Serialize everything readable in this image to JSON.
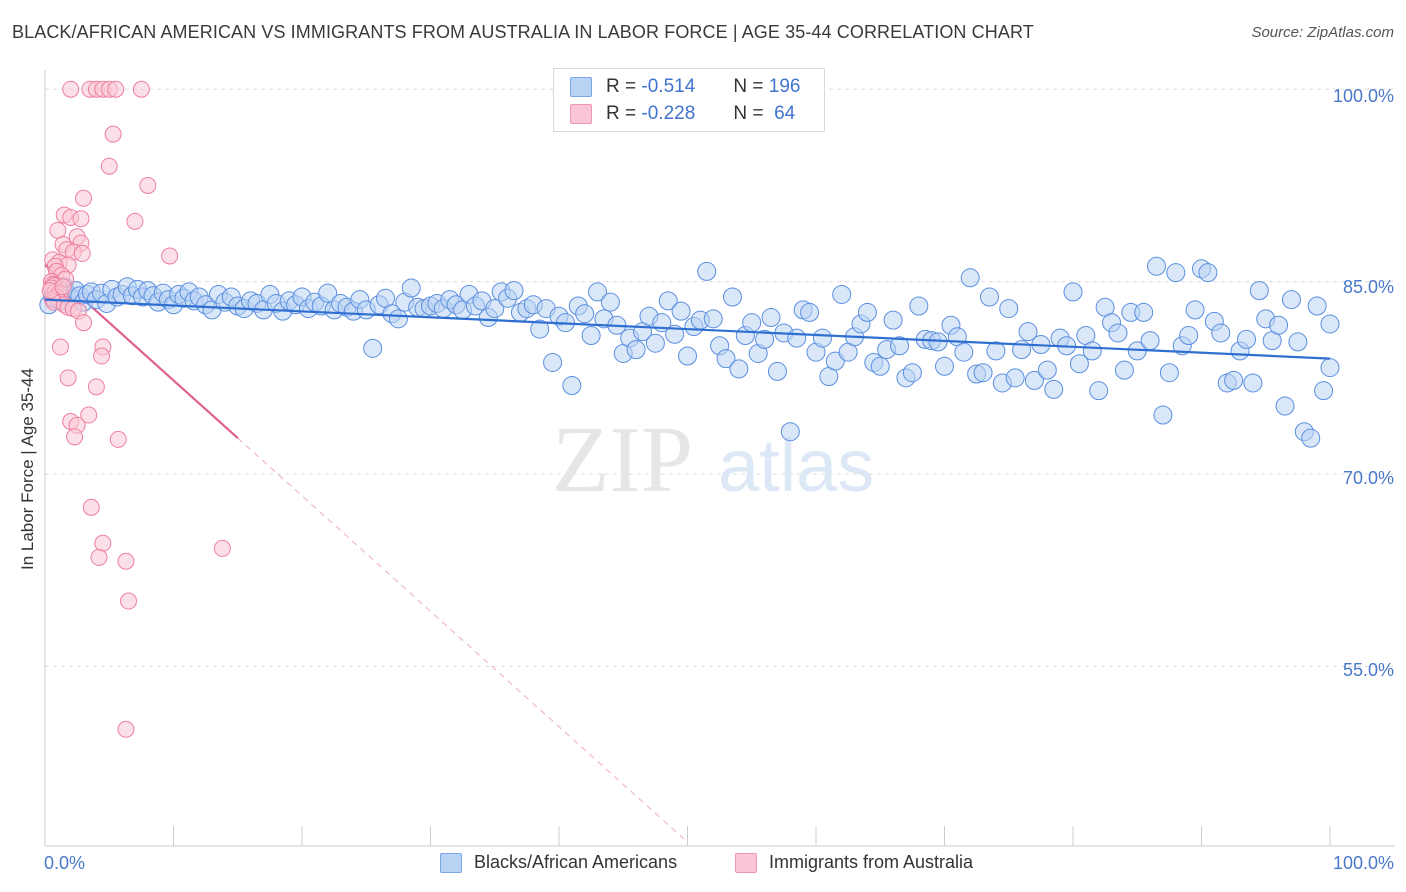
{
  "title": "BLACK/AFRICAN AMERICAN VS IMMIGRANTS FROM AUSTRALIA IN LABOR FORCE | AGE 35-44 CORRELATION CHART",
  "source": "Source: ZipAtlas.com",
  "watermark": {
    "zip": "ZIP",
    "atlas": "atlas"
  },
  "stats": {
    "blue": {
      "r_label": "R =",
      "r": "-0.514",
      "n_label": "N =",
      "n": "196"
    },
    "pink": {
      "r_label": "R =",
      "r": "-0.228",
      "n_label": "N =",
      "n": "64"
    }
  },
  "legend": {
    "blue": "Blacks/African Americans",
    "pink": "Immigrants from Australia"
  },
  "colors": {
    "blue": "#5b8fe0",
    "blue_fill": "#b9d3f4",
    "blue_line": "#2f6fd0",
    "pink": "#ee7fa0",
    "pink_fill": "#fac6d5",
    "pink_line": "#e0608c",
    "tick": "#4a78c8"
  },
  "chart_data": {
    "type": "scatter",
    "title": "BLACK/AFRICAN AMERICAN VS IMMIGRANTS FROM AUSTRALIA IN LABOR FORCE | AGE 35-44 CORRELATION CHART",
    "xlabel": "",
    "ylabel": "In Labor Force | Age 35-44",
    "xlim": [
      0,
      100
    ],
    "ylim": [
      41,
      101.5
    ],
    "x_tick_labels": [
      "0.0%",
      "100.0%"
    ],
    "y_ticks": [
      100,
      85,
      70,
      55
    ],
    "y_tick_labels": [
      "100.0%",
      "85.0%",
      "70.0%",
      "55.0%"
    ],
    "grid": true,
    "series": [
      {
        "name": "Blacks/African Americans",
        "r": -0.514,
        "n": 196,
        "trend": {
          "x0": 0,
          "y0": 83.6,
          "x1": 100,
          "y1": 79.0
        },
        "points": [
          [
            0.3,
            83.2
          ],
          [
            0.6,
            83.8
          ],
          [
            0.9,
            84.1
          ],
          [
            1.2,
            83.5
          ],
          [
            1.5,
            84.6
          ],
          [
            1.8,
            84.0
          ],
          [
            2.1,
            83.7
          ],
          [
            2.4,
            84.3
          ],
          [
            2.7,
            83.9
          ],
          [
            3.0,
            83.4
          ],
          [
            3.3,
            84.0
          ],
          [
            3.6,
            84.2
          ],
          [
            4.0,
            83.6
          ],
          [
            4.4,
            84.1
          ],
          [
            4.8,
            83.3
          ],
          [
            5.2,
            84.4
          ],
          [
            5.6,
            83.8
          ],
          [
            6.0,
            84.0
          ],
          [
            6.4,
            84.6
          ],
          [
            6.8,
            83.9
          ],
          [
            7.2,
            84.4
          ],
          [
            7.6,
            83.8
          ],
          [
            8.0,
            84.3
          ],
          [
            8.4,
            83.9
          ],
          [
            8.8,
            83.4
          ],
          [
            9.2,
            84.1
          ],
          [
            9.6,
            83.6
          ],
          [
            10.0,
            83.2
          ],
          [
            10.4,
            84.0
          ],
          [
            10.8,
            83.7
          ],
          [
            11.2,
            84.2
          ],
          [
            11.6,
            83.5
          ],
          [
            12.0,
            83.8
          ],
          [
            12.5,
            83.2
          ],
          [
            13.0,
            82.8
          ],
          [
            13.5,
            84.0
          ],
          [
            14.0,
            83.4
          ],
          [
            14.5,
            83.8
          ],
          [
            15.0,
            83.1
          ],
          [
            15.5,
            82.9
          ],
          [
            16.0,
            83.5
          ],
          [
            16.5,
            83.3
          ],
          [
            17.0,
            82.8
          ],
          [
            17.5,
            84.0
          ],
          [
            18.0,
            83.3
          ],
          [
            18.5,
            82.7
          ],
          [
            19.0,
            83.5
          ],
          [
            19.5,
            83.2
          ],
          [
            20.0,
            83.8
          ],
          [
            20.5,
            82.9
          ],
          [
            21.0,
            83.4
          ],
          [
            21.5,
            83.1
          ],
          [
            22.0,
            84.1
          ],
          [
            22.5,
            82.8
          ],
          [
            23.0,
            83.3
          ],
          [
            23.5,
            83.0
          ],
          [
            24.0,
            82.7
          ],
          [
            24.5,
            83.6
          ],
          [
            25.0,
            82.8
          ],
          [
            25.5,
            79.8
          ],
          [
            26.0,
            83.2
          ],
          [
            26.5,
            83.7
          ],
          [
            27.0,
            82.5
          ],
          [
            27.5,
            82.1
          ],
          [
            28.0,
            83.4
          ],
          [
            28.5,
            84.5
          ],
          [
            29.0,
            83.0
          ],
          [
            29.5,
            82.9
          ],
          [
            30.0,
            83.1
          ],
          [
            30.5,
            83.3
          ],
          [
            31.0,
            82.9
          ],
          [
            31.5,
            83.6
          ],
          [
            32.0,
            83.2
          ],
          [
            32.5,
            82.8
          ],
          [
            33.0,
            84.0
          ],
          [
            33.5,
            83.1
          ],
          [
            34.0,
            83.5
          ],
          [
            34.5,
            82.2
          ],
          [
            35.0,
            82.9
          ],
          [
            35.5,
            84.2
          ],
          [
            36.0,
            83.7
          ],
          [
            36.5,
            84.3
          ],
          [
            37.0,
            82.6
          ],
          [
            37.5,
            82.9
          ],
          [
            38.0,
            83.2
          ],
          [
            38.5,
            81.3
          ],
          [
            39.0,
            82.9
          ],
          [
            39.5,
            78.7
          ],
          [
            40.0,
            82.3
          ],
          [
            40.5,
            81.8
          ],
          [
            41.0,
            76.9
          ],
          [
            41.5,
            83.1
          ],
          [
            42.0,
            82.5
          ],
          [
            42.5,
            80.8
          ],
          [
            43.0,
            84.2
          ],
          [
            43.5,
            82.1
          ],
          [
            44.0,
            83.4
          ],
          [
            44.5,
            81.6
          ],
          [
            45.0,
            79.4
          ],
          [
            45.5,
            80.6
          ],
          [
            46.0,
            79.7
          ],
          [
            46.5,
            81.1
          ],
          [
            47.0,
            82.3
          ],
          [
            47.5,
            80.2
          ],
          [
            48.0,
            81.8
          ],
          [
            48.5,
            83.5
          ],
          [
            49.0,
            80.9
          ],
          [
            49.5,
            82.7
          ],
          [
            50.0,
            79.2
          ],
          [
            50.5,
            81.5
          ],
          [
            51.0,
            82.0
          ],
          [
            51.5,
            85.8
          ],
          [
            52.0,
            82.1
          ],
          [
            52.5,
            80.0
          ],
          [
            53.0,
            79.0
          ],
          [
            53.5,
            83.8
          ],
          [
            54.0,
            78.2
          ],
          [
            54.5,
            80.8
          ],
          [
            55.0,
            81.8
          ],
          [
            55.5,
            79.4
          ],
          [
            56.0,
            80.5
          ],
          [
            56.5,
            82.2
          ],
          [
            57.0,
            78.0
          ],
          [
            57.5,
            81.0
          ],
          [
            58.0,
            73.3
          ],
          [
            58.5,
            80.6
          ],
          [
            59.0,
            82.8
          ],
          [
            59.5,
            82.6
          ],
          [
            60.0,
            79.5
          ],
          [
            60.5,
            80.6
          ],
          [
            61.0,
            77.6
          ],
          [
            61.5,
            78.8
          ],
          [
            62.0,
            84.0
          ],
          [
            62.5,
            79.5
          ],
          [
            63.0,
            80.7
          ],
          [
            63.5,
            81.7
          ],
          [
            64.0,
            82.6
          ],
          [
            64.5,
            78.7
          ],
          [
            65.0,
            78.4
          ],
          [
            65.5,
            79.7
          ],
          [
            66.0,
            82.0
          ],
          [
            66.5,
            80.0
          ],
          [
            67.0,
            77.5
          ],
          [
            67.5,
            77.9
          ],
          [
            68.0,
            83.1
          ],
          [
            68.5,
            80.5
          ],
          [
            69.0,
            80.4
          ],
          [
            69.5,
            80.3
          ],
          [
            70.0,
            78.4
          ],
          [
            70.5,
            81.6
          ],
          [
            71.0,
            80.7
          ],
          [
            71.5,
            79.5
          ],
          [
            72.0,
            85.3
          ],
          [
            72.5,
            77.8
          ],
          [
            73.0,
            77.9
          ],
          [
            73.5,
            83.8
          ],
          [
            74.0,
            79.6
          ],
          [
            74.5,
            77.1
          ],
          [
            75.0,
            82.9
          ],
          [
            75.5,
            77.5
          ],
          [
            76.0,
            79.7
          ],
          [
            76.5,
            81.1
          ],
          [
            77.0,
            77.3
          ],
          [
            77.5,
            80.1
          ],
          [
            78.0,
            78.1
          ],
          [
            78.5,
            76.6
          ],
          [
            79.0,
            80.6
          ],
          [
            79.5,
            80.0
          ],
          [
            80.0,
            84.2
          ],
          [
            80.5,
            78.6
          ],
          [
            81.0,
            80.8
          ],
          [
            81.5,
            79.6
          ],
          [
            82.0,
            76.5
          ],
          [
            82.5,
            83.0
          ],
          [
            83.0,
            81.8
          ],
          [
            83.5,
            81.0
          ],
          [
            84.0,
            78.1
          ],
          [
            84.5,
            82.6
          ],
          [
            85.0,
            79.6
          ],
          [
            85.5,
            82.6
          ],
          [
            86.0,
            80.4
          ],
          [
            86.5,
            86.2
          ],
          [
            87.0,
            74.6
          ],
          [
            87.5,
            77.9
          ],
          [
            88.0,
            85.7
          ],
          [
            88.5,
            80.0
          ],
          [
            89.0,
            80.8
          ],
          [
            89.5,
            82.8
          ],
          [
            90.0,
            86.0
          ],
          [
            90.5,
            85.7
          ],
          [
            91.0,
            81.9
          ],
          [
            91.5,
            81.0
          ],
          [
            92.0,
            77.1
          ],
          [
            92.5,
            77.3
          ],
          [
            93.0,
            79.6
          ],
          [
            93.5,
            80.5
          ],
          [
            94.0,
            77.1
          ],
          [
            94.5,
            84.3
          ],
          [
            95.0,
            82.1
          ],
          [
            95.5,
            80.4
          ],
          [
            96.0,
            81.6
          ],
          [
            96.5,
            75.3
          ],
          [
            97.0,
            83.6
          ],
          [
            97.5,
            80.3
          ],
          [
            98.0,
            73.3
          ],
          [
            98.5,
            72.8
          ],
          [
            99.0,
            83.1
          ],
          [
            99.5,
            76.5
          ],
          [
            100.0,
            78.3
          ],
          [
            100.0,
            81.7
          ]
        ]
      },
      {
        "name": "Immigrants from Australia",
        "r": -0.228,
        "n": 64,
        "trend": {
          "x0": 0,
          "y0": 86.3,
          "x1": 15,
          "y1": 72.8,
          "dash_to_x": 50
        },
        "points": [
          [
            2.0,
            100.0
          ],
          [
            3.5,
            100.0
          ],
          [
            4.0,
            100.0
          ],
          [
            4.5,
            100.0
          ],
          [
            5.0,
            100.0
          ],
          [
            5.5,
            100.0
          ],
          [
            7.5,
            100.0
          ],
          [
            5.3,
            96.5
          ],
          [
            5.0,
            94.0
          ],
          [
            8.0,
            92.5
          ],
          [
            3.0,
            91.5
          ],
          [
            1.5,
            90.2
          ],
          [
            2.0,
            90.0
          ],
          [
            2.8,
            89.9
          ],
          [
            7.0,
            89.7
          ],
          [
            1.0,
            89.0
          ],
          [
            2.5,
            88.5
          ],
          [
            2.8,
            88.0
          ],
          [
            1.4,
            87.9
          ],
          [
            1.7,
            87.5
          ],
          [
            2.2,
            87.3
          ],
          [
            2.9,
            87.2
          ],
          [
            0.6,
            86.7
          ],
          [
            1.1,
            86.5
          ],
          [
            1.8,
            86.3
          ],
          [
            0.8,
            86.2
          ],
          [
            0.9,
            85.8
          ],
          [
            1.3,
            85.5
          ],
          [
            1.6,
            85.2
          ],
          [
            0.5,
            85.0
          ],
          [
            0.6,
            84.8
          ],
          [
            0.7,
            84.7
          ],
          [
            0.5,
            84.5
          ],
          [
            0.8,
            84.2
          ],
          [
            1.0,
            84.0
          ],
          [
            1.2,
            84.1
          ],
          [
            0.9,
            83.8
          ],
          [
            0.6,
            83.6
          ],
          [
            0.7,
            83.4
          ],
          [
            1.5,
            83.2
          ],
          [
            1.8,
            83.0
          ],
          [
            2.2,
            82.9
          ],
          [
            2.6,
            82.7
          ],
          [
            9.7,
            87.0
          ],
          [
            3.0,
            81.8
          ],
          [
            1.2,
            79.9
          ],
          [
            4.5,
            79.9
          ],
          [
            4.4,
            79.2
          ],
          [
            1.8,
            77.5
          ],
          [
            4.0,
            76.8
          ],
          [
            3.4,
            74.6
          ],
          [
            2.0,
            74.1
          ],
          [
            2.5,
            73.8
          ],
          [
            2.3,
            72.9
          ],
          [
            5.7,
            72.7
          ],
          [
            3.6,
            67.4
          ],
          [
            4.5,
            64.6
          ],
          [
            4.2,
            63.5
          ],
          [
            6.3,
            63.2
          ],
          [
            13.8,
            64.2
          ],
          [
            6.5,
            60.1
          ],
          [
            6.3,
            50.1
          ],
          [
            0.4,
            84.3
          ],
          [
            1.4,
            84.6
          ]
        ]
      }
    ]
  }
}
